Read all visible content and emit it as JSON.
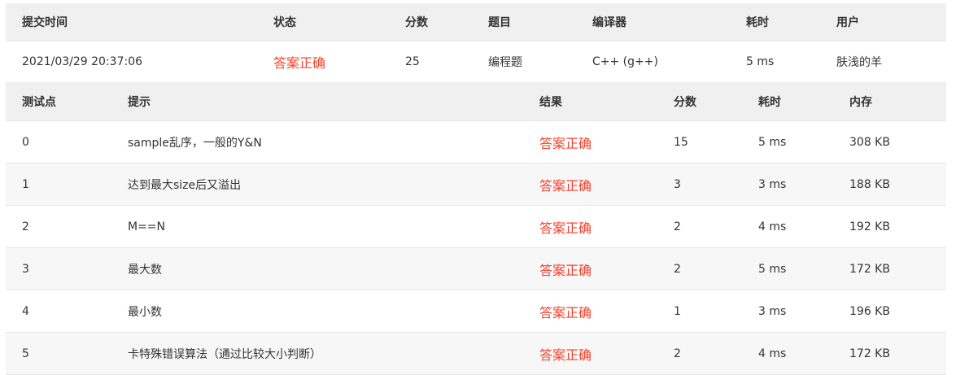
{
  "submission": {
    "headers": [
      "提交时间",
      "状态",
      "分数",
      "题目",
      "编译器",
      "耗时",
      "用户"
    ],
    "row": {
      "time": "2021/03/29 20:37:06",
      "status": "答案正确",
      "score": "25",
      "problem": "编程题",
      "compiler": "C++ (g++)",
      "elapsed": "5 ms",
      "user": "肤浅的羊"
    }
  },
  "cases": {
    "headers": [
      "测试点",
      "提示",
      "结果",
      "分数",
      "耗时",
      "内存"
    ],
    "rows": [
      {
        "id": "0",
        "hint": "sample乱序，一般的Y&N",
        "result": "答案正确",
        "score": "15",
        "time": "5 ms",
        "memory": "308 KB"
      },
      {
        "id": "1",
        "hint": "达到最大size后又溢出",
        "result": "答案正确",
        "score": "3",
        "time": "3 ms",
        "memory": "188 KB"
      },
      {
        "id": "2",
        "hint": "M==N",
        "result": "答案正确",
        "score": "2",
        "time": "4 ms",
        "memory": "192 KB"
      },
      {
        "id": "3",
        "hint": "最大数",
        "result": "答案正确",
        "score": "2",
        "time": "5 ms",
        "memory": "172 KB"
      },
      {
        "id": "4",
        "hint": "最小数",
        "result": "答案正确",
        "score": "1",
        "time": "3 ms",
        "memory": "196 KB"
      },
      {
        "id": "5",
        "hint": "卡特殊错误算法（通过比较大小判断）",
        "result": "答案正确",
        "score": "2",
        "time": "4 ms",
        "memory": "172 KB"
      }
    ]
  },
  "colors": {
    "accepted": "#f5412d"
  }
}
